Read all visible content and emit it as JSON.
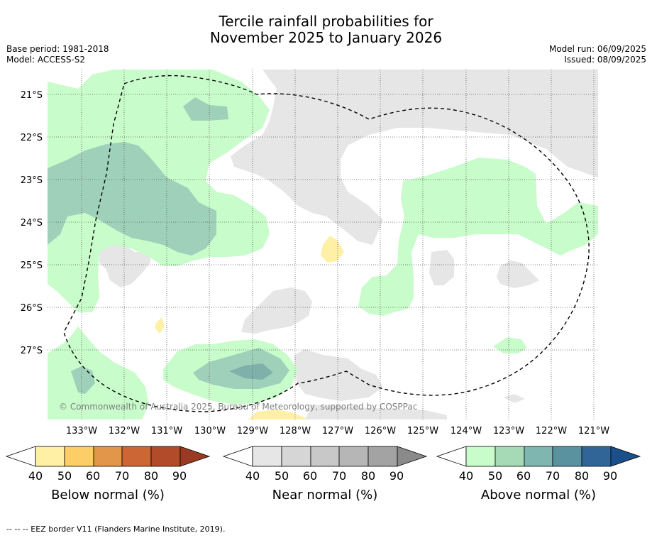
{
  "title_line1": "Tercile rainfall probabilities for",
  "title_line2": "November 2025 to January 2026",
  "base_period": "Base period: 1981-2018",
  "model": "Model: ACCESS-S2",
  "model_run": "Model run: 06/09/2025",
  "issued": "Issued: 08/09/2025",
  "copyright": "© Commonwealth of Australia 2025, Bureau of Meteorology, supported by COSPPac",
  "footnote": "--  --  -- EEZ border V11 (Flanders Marine Institute, 2019).",
  "lon_labels": [
    "133°W",
    "132°W",
    "131°W",
    "130°W",
    "129°W",
    "128°W",
    "127°W",
    "126°W",
    "125°W",
    "124°W",
    "123°W",
    "122°W",
    "121°W"
  ],
  "lat_labels": [
    "21°S",
    "22°S",
    "23°S",
    "24°S",
    "25°S",
    "26°S",
    "27°S"
  ],
  "legends": [
    {
      "label": "Below normal (%)",
      "ticks": [
        "40",
        "50",
        "60",
        "70",
        "80",
        "90"
      ],
      "colors": [
        "#ffffff",
        "#fff0a5",
        "#fdcd68",
        "#e2964a",
        "#cc6634",
        "#b14b29",
        "#9a3a22"
      ]
    },
    {
      "label": "Near normal (%)",
      "ticks": [
        "40",
        "50",
        "60",
        "70",
        "80",
        "90"
      ],
      "colors": [
        "#ffffff",
        "#e6e6e6",
        "#d6d6d6",
        "#c8c8c8",
        "#b6b6b6",
        "#a3a3a3",
        "#8a8a8a"
      ]
    },
    {
      "label": "Above normal (%)",
      "ticks": [
        "40",
        "50",
        "60",
        "70",
        "80",
        "90"
      ],
      "colors": [
        "#ffffff",
        "#c8fcca",
        "#a6dab6",
        "#80b6b0",
        "#5a92a0",
        "#316598",
        "#1b4f8a"
      ]
    }
  ]
}
